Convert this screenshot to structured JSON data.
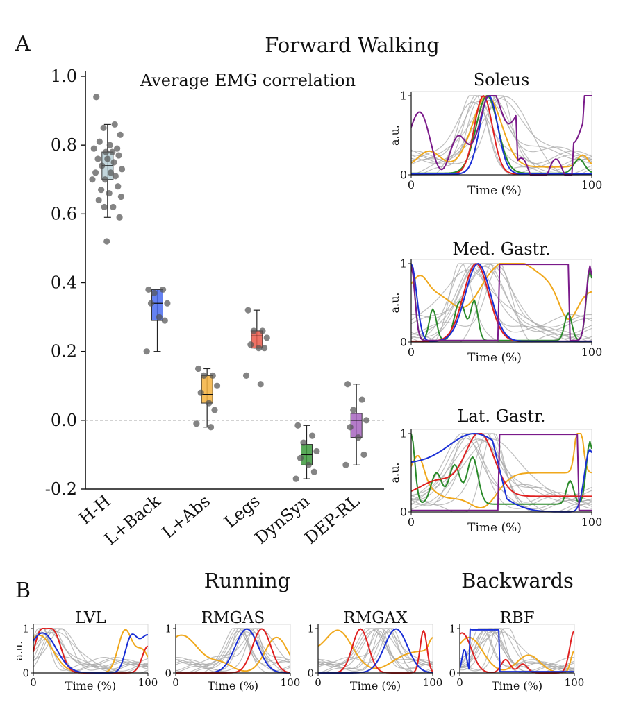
{
  "panel_a_label": "A",
  "panel_b_label": "B",
  "forward_title": "Forward Walking",
  "running_title": "Running",
  "backwards_title": "Backwards",
  "chart_data": [
    {
      "id": "avg_emg",
      "type": "boxplot",
      "title": "Average EMG correlation",
      "ylim": [
        -0.2,
        1.0
      ],
      "yticks": [
        -0.2,
        0.0,
        0.2,
        0.4,
        0.6,
        0.8,
        1.0
      ],
      "ytick_labels": [
        "-0.2",
        "0.0",
        "0.2",
        "0.4",
        "0.6",
        "0.8",
        "1.0"
      ],
      "categories": [
        "H-H",
        "L+Back",
        "L+Abs",
        "Legs",
        "DynSyn",
        "DEP-RL"
      ],
      "colors": [
        "#b7cfd6",
        "#4a6cf0",
        "#f5b13d",
        "#ea5a4b",
        "#3d9a3d",
        "#a765c0"
      ],
      "boxes": [
        {
          "whisker_low": 0.59,
          "q1": 0.7,
          "median": 0.74,
          "q3": 0.78,
          "whisker_high": 0.86
        },
        {
          "whisker_low": 0.2,
          "q1": 0.29,
          "median": 0.34,
          "q3": 0.38,
          "whisker_high": 0.38
        },
        {
          "whisker_low": -0.02,
          "q1": 0.05,
          "median": 0.075,
          "q3": 0.13,
          "whisker_high": 0.15
        },
        {
          "whisker_low": 0.21,
          "q1": 0.21,
          "median": 0.245,
          "q3": 0.26,
          "whisker_high": 0.32
        },
        {
          "whisker_low": -0.17,
          "q1": -0.13,
          "median": -0.1,
          "q3": -0.07,
          "whisker_high": -0.015
        },
        {
          "whisker_low": -0.13,
          "q1": -0.05,
          "median": 0.0,
          "q3": 0.02,
          "whisker_high": 0.105
        }
      ],
      "points": [
        [
          0.94,
          0.86,
          0.85,
          0.83,
          0.81,
          0.8,
          0.79,
          0.79,
          0.78,
          0.78,
          0.77,
          0.76,
          0.76,
          0.75,
          0.74,
          0.73,
          0.72,
          0.72,
          0.71,
          0.7,
          0.7,
          0.68,
          0.67,
          0.66,
          0.65,
          0.64,
          0.62,
          0.62,
          0.59,
          0.52
        ],
        [
          0.38,
          0.38,
          0.37,
          0.34,
          0.34,
          0.3,
          0.29,
          0.2
        ],
        [
          0.15,
          0.13,
          0.13,
          0.1,
          0.08,
          0.05,
          0.03,
          -0.01,
          -0.02
        ],
        [
          0.32,
          0.26,
          0.26,
          0.24,
          0.22,
          0.21,
          0.21,
          0.13,
          0.105
        ],
        [
          -0.015,
          -0.045,
          -0.065,
          -0.09,
          -0.11,
          -0.13,
          -0.15,
          -0.17
        ],
        [
          0.105,
          0.06,
          0.03,
          0.0,
          -0.02,
          -0.05,
          -0.1,
          -0.13
        ]
      ],
      "zero_line": "dashed"
    },
    {
      "id": "soleus",
      "type": "line",
      "title": "Soleus",
      "ylabel": "a.u.",
      "xlabel": "Time (%)",
      "xticks": [
        "0",
        "100"
      ],
      "yticks": [
        "0",
        "1"
      ],
      "series_colors": [
        "#8a8a8a",
        "#e6a11c",
        "#2a8a2a",
        "#e62020",
        "#1a2fd6",
        "#7a1a8a"
      ]
    },
    {
      "id": "med_gastr",
      "type": "line",
      "title": "Med. Gastr.",
      "ylabel": "a.u.",
      "xlabel": "Time (%)",
      "xticks": [
        "0",
        "100"
      ],
      "yticks": [
        "0",
        "1"
      ]
    },
    {
      "id": "lat_gastr",
      "type": "line",
      "title": "Lat. Gastr.",
      "ylabel": "a.u.",
      "xlabel": "Time (%)",
      "xticks": [
        "0",
        "100"
      ],
      "yticks": [
        "0",
        "1"
      ]
    },
    {
      "id": "lvl",
      "type": "line",
      "title": "LVL",
      "ylabel": "a.u.",
      "xlabel": "Time (%)",
      "xticks": [
        "0",
        "100"
      ],
      "yticks": [
        "0",
        "1"
      ]
    },
    {
      "id": "rmgas",
      "type": "line",
      "title": "RMGAS",
      "ylabel": "",
      "xlabel": "Time (%)",
      "xticks": [
        "0",
        "100"
      ],
      "yticks": [
        "0",
        "1"
      ]
    },
    {
      "id": "rmgax",
      "type": "line",
      "title": "RMGAX",
      "ylabel": "",
      "xlabel": "Time (%)",
      "xticks": [
        "0",
        "100"
      ],
      "yticks": [
        "0",
        "1"
      ]
    },
    {
      "id": "rbf",
      "type": "line",
      "title": "RBF",
      "ylabel": "",
      "xlabel": "Time (%)",
      "xticks": [
        "0",
        "100"
      ],
      "yticks": [
        "0",
        "1"
      ]
    }
  ]
}
